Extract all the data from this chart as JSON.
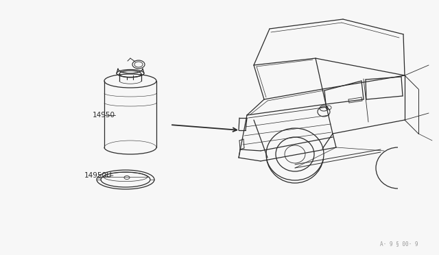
{
  "bg_color": "#f7f7f7",
  "line_color": "#2a2a2a",
  "label_14950": "14950",
  "label_14950u": "14950U",
  "watermark": "A· 9 § 00· 9"
}
